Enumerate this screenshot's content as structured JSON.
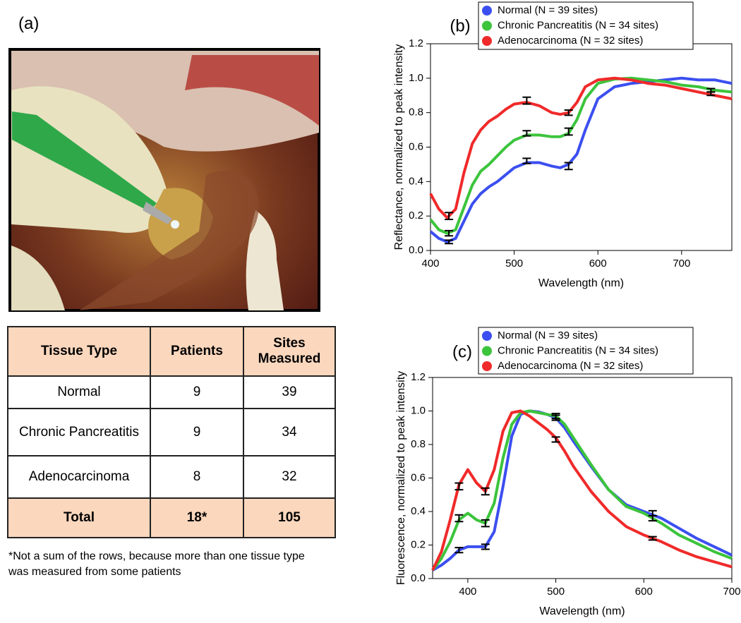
{
  "panel_label": "(a)",
  "table": {
    "header": [
      "Tissue Type",
      "Patients",
      "Sites Measured"
    ],
    "rows": [
      [
        "Normal",
        "9",
        "39"
      ],
      [
        "Chronic Pancreatitis",
        "9",
        "34"
      ],
      [
        "Adenocarcinoma",
        "8",
        "32"
      ]
    ],
    "total": [
      "Total",
      "18*",
      "105"
    ]
  },
  "footnote": "*Not a sum of the rows, because more than one tissue type was measured from some patients",
  "chart_data": [
    {
      "type": "line",
      "title": "(b)",
      "xlabel": "Wavelength (nm)",
      "ylabel": "Reflectance, normalized to peak intensity",
      "xlim": [
        400,
        760
      ],
      "xticks": [
        400,
        500,
        600,
        700
      ],
      "ylim": [
        0,
        1.2
      ],
      "yticks": [
        {
          "value": 0,
          "label": "0.0"
        },
        0.2,
        0.4,
        0.6,
        0.8,
        {
          "value": 1,
          "label": "1.0"
        },
        1.2
      ],
      "legend": "top",
      "x": [
        400,
        410,
        420,
        430,
        440,
        450,
        460,
        470,
        480,
        490,
        500,
        515,
        530,
        545,
        555,
        565,
        575,
        585,
        600,
        620,
        640,
        660,
        680,
        700,
        720,
        740,
        760
      ],
      "series": [
        {
          "name": "Normal (N = 39 sites)",
          "color": "#3b4ff0",
          "values": [
            0.11,
            0.07,
            0.05,
            0.07,
            0.17,
            0.27,
            0.33,
            0.37,
            0.4,
            0.44,
            0.48,
            0.51,
            0.51,
            0.49,
            0.48,
            0.5,
            0.56,
            0.7,
            0.88,
            0.95,
            0.97,
            0.98,
            0.99,
            1.0,
            0.99,
            0.99,
            0.97
          ],
          "error_bars": [
            {
              "x": 422,
              "value": 0.05,
              "error": 0.01
            },
            {
              "x": 515,
              "value": 0.52,
              "error": 0.015
            },
            {
              "x": 565,
              "value": 0.49,
              "error": 0.02
            }
          ]
        },
        {
          "name": "Chronic Pancreatitis (N = 34 sites)",
          "color": "#3cc43c",
          "values": [
            0.18,
            0.12,
            0.1,
            0.12,
            0.25,
            0.38,
            0.46,
            0.5,
            0.55,
            0.6,
            0.64,
            0.67,
            0.67,
            0.66,
            0.66,
            0.68,
            0.76,
            0.88,
            0.97,
            0.995,
            1.0,
            0.99,
            0.98,
            0.96,
            0.95,
            0.93,
            0.92
          ],
          "error_bars": [
            {
              "x": 422,
              "value": 0.1,
              "error": 0.015
            },
            {
              "x": 515,
              "value": 0.68,
              "error": 0.015
            },
            {
              "x": 565,
              "value": 0.69,
              "error": 0.02
            },
            {
              "x": 735,
              "value": 0.93,
              "error": 0.01
            }
          ]
        },
        {
          "name": "Adenocarcinoma (N = 32 sites)",
          "color": "#f02a2a",
          "values": [
            0.33,
            0.24,
            0.19,
            0.24,
            0.45,
            0.62,
            0.7,
            0.75,
            0.78,
            0.82,
            0.85,
            0.86,
            0.84,
            0.8,
            0.79,
            0.8,
            0.86,
            0.95,
            0.99,
            1.0,
            0.99,
            0.97,
            0.96,
            0.94,
            0.92,
            0.9,
            0.88
          ],
          "error_bars": [
            {
              "x": 422,
              "value": 0.2,
              "error": 0.02
            },
            {
              "x": 515,
              "value": 0.87,
              "error": 0.02
            },
            {
              "x": 565,
              "value": 0.8,
              "error": 0.015
            },
            {
              "x": 735,
              "value": 0.91,
              "error": 0.01
            }
          ]
        }
      ]
    },
    {
      "type": "line",
      "title": "(c)",
      "xlabel": "Wavelength (nm)",
      "ylabel": "Fluorescence, normalized to peak intensity",
      "xlim": [
        360,
        700
      ],
      "xticks": [
        400,
        500,
        600,
        700
      ],
      "ylim": [
        0,
        1.2
      ],
      "yticks": [
        {
          "value": 0,
          "label": "0.0"
        },
        0.2,
        0.4,
        0.6,
        0.8,
        {
          "value": 1,
          "label": "1.0"
        },
        1.2
      ],
      "legend": "top",
      "x": [
        360,
        370,
        380,
        390,
        400,
        410,
        420,
        430,
        440,
        450,
        460,
        470,
        480,
        490,
        500,
        510,
        520,
        540,
        560,
        580,
        600,
        620,
        640,
        660,
        680,
        700
      ],
      "series": [
        {
          "name": "Normal (N = 39 sites)",
          "color": "#3b4ff0",
          "values": [
            0.05,
            0.08,
            0.12,
            0.17,
            0.19,
            0.19,
            0.19,
            0.28,
            0.55,
            0.85,
            0.98,
            1.0,
            0.995,
            0.98,
            0.96,
            0.9,
            0.82,
            0.67,
            0.53,
            0.44,
            0.4,
            0.36,
            0.3,
            0.24,
            0.19,
            0.14
          ],
          "error_bars": [
            {
              "x": 390,
              "value": 0.17,
              "error": 0.015
            },
            {
              "x": 420,
              "value": 0.19,
              "error": 0.015
            },
            {
              "x": 500,
              "value": 0.97,
              "error": 0.015
            },
            {
              "x": 610,
              "value": 0.39,
              "error": 0.015
            }
          ]
        },
        {
          "name": "Chronic Pancreatitis (N = 34 sites)",
          "color": "#3cc43c",
          "values": [
            0.05,
            0.12,
            0.22,
            0.35,
            0.39,
            0.35,
            0.33,
            0.45,
            0.72,
            0.92,
            0.99,
            1.0,
            0.99,
            0.98,
            0.97,
            0.92,
            0.84,
            0.68,
            0.53,
            0.43,
            0.39,
            0.33,
            0.26,
            0.21,
            0.16,
            0.12
          ],
          "error_bars": [
            {
              "x": 390,
              "value": 0.36,
              "error": 0.02
            },
            {
              "x": 420,
              "value": 0.33,
              "error": 0.02
            },
            {
              "x": 500,
              "value": 0.96,
              "error": 0.015
            },
            {
              "x": 610,
              "value": 0.36,
              "error": 0.015
            }
          ]
        },
        {
          "name": "Adenocarcinoma (N = 32 sites)",
          "color": "#f02a2a",
          "values": [
            0.05,
            0.16,
            0.35,
            0.56,
            0.65,
            0.57,
            0.52,
            0.65,
            0.88,
            0.99,
            1.0,
            0.97,
            0.93,
            0.89,
            0.84,
            0.76,
            0.67,
            0.52,
            0.4,
            0.31,
            0.26,
            0.22,
            0.17,
            0.13,
            0.1,
            0.07
          ],
          "error_bars": [
            {
              "x": 390,
              "value": 0.55,
              "error": 0.02
            },
            {
              "x": 420,
              "value": 0.52,
              "error": 0.02
            },
            {
              "x": 500,
              "value": 0.83,
              "error": 0.015
            },
            {
              "x": 610,
              "value": 0.24,
              "error": 0.01
            }
          ]
        }
      ]
    }
  ]
}
